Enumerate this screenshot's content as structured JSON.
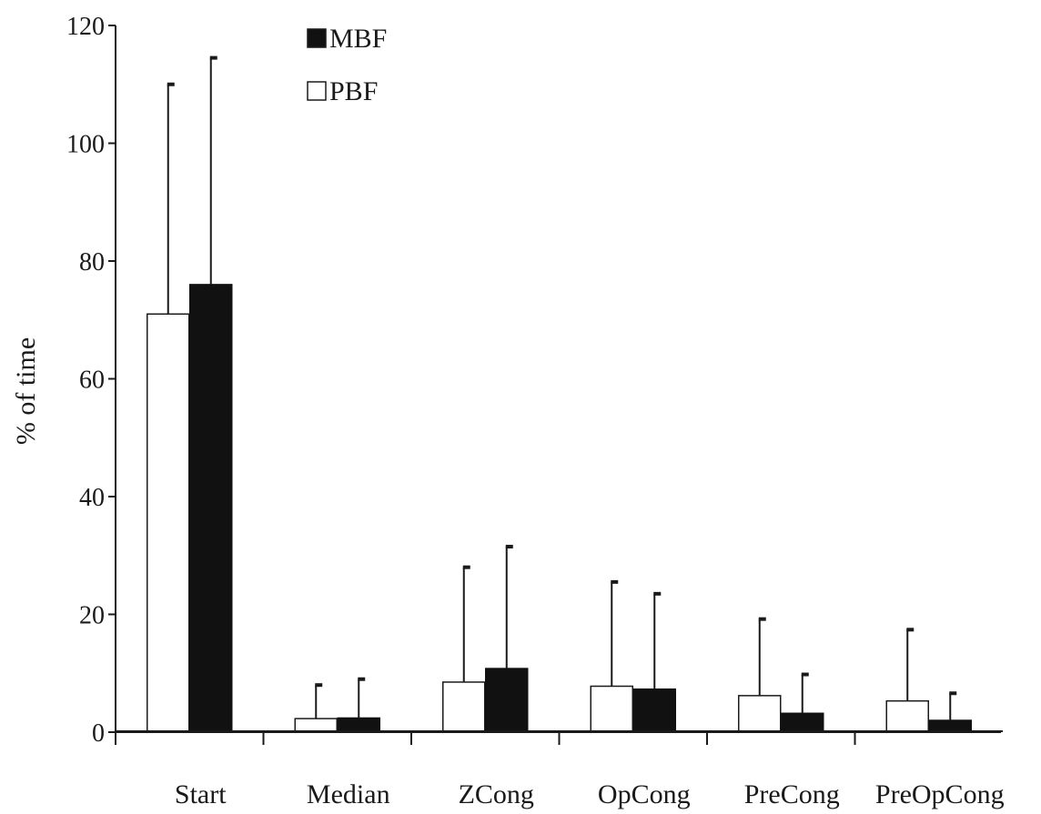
{
  "chart_data": {
    "type": "bar",
    "title": "",
    "xlabel": "",
    "ylabel": "% of time",
    "ylim": [
      0,
      120
    ],
    "yticks": [
      0,
      20,
      40,
      60,
      80,
      100,
      120
    ],
    "categories": [
      "Start",
      "Median",
      "ZCong",
      "OpCong",
      "PreCong",
      "PreOpCong"
    ],
    "series": [
      {
        "name": "PBF",
        "color": "#ffffff",
        "values": [
          71,
          2.3,
          8.5,
          7.8,
          6.2,
          5.3
        ],
        "error_upper": [
          110,
          8,
          28,
          25.5,
          19.2,
          17.4
        ]
      },
      {
        "name": "MBF",
        "color": "#111111",
        "values": [
          76,
          2.4,
          10.8,
          7.3,
          3.2,
          2
        ],
        "error_upper": [
          114.5,
          9,
          31.5,
          23.5,
          9.8,
          6.6
        ]
      }
    ],
    "legend_order": [
      "MBF",
      "PBF"
    ],
    "legend_position": "top-left",
    "grid": false
  }
}
